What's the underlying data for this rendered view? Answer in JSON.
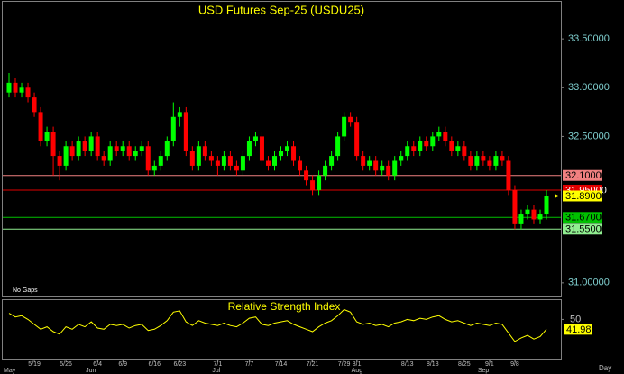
{
  "chart_data": {
    "type": "candlestick",
    "title": "USD Futures Sep-25 (USDU25)",
    "note": "No Gaps",
    "period": "Day",
    "up_color": "#00ff00",
    "down_color": "#ff0000",
    "categories": [
      null,
      null,
      null,
      null,
      "5/19",
      null,
      null,
      null,
      null,
      "5/26",
      null,
      null,
      null,
      null,
      "6/4",
      null,
      null,
      null,
      "6/9",
      null,
      null,
      null,
      null,
      "6/16",
      null,
      null,
      null,
      "6/23",
      null,
      null,
      null,
      null,
      null,
      "7/1",
      null,
      null,
      null,
      null,
      "7/7",
      null,
      null,
      null,
      null,
      "7/14",
      null,
      null,
      null,
      null,
      "7/21",
      null,
      null,
      null,
      null,
      "7/29",
      null,
      "8/1",
      null,
      null,
      null,
      null,
      null,
      null,
      null,
      "8/13",
      null,
      null,
      null,
      "8/18",
      null,
      null,
      null,
      null,
      "8/25",
      null,
      null,
      null,
      "9/1",
      null,
      null,
      null,
      "9/8",
      null,
      null,
      null,
      null,
      null
    ],
    "months": [
      "May",
      null,
      null,
      null,
      null,
      null,
      null,
      null,
      null,
      null,
      null,
      null,
      null,
      "Jun",
      null,
      null,
      null,
      null,
      null,
      null,
      null,
      null,
      null,
      null,
      null,
      null,
      null,
      null,
      null,
      null,
      null,
      null,
      null,
      "Jul",
      null,
      null,
      null,
      null,
      null,
      null,
      null,
      null,
      null,
      null,
      null,
      null,
      null,
      null,
      null,
      null,
      null,
      null,
      null,
      null,
      null,
      "Aug",
      null,
      null,
      null,
      null,
      null,
      null,
      null,
      null,
      null,
      null,
      null,
      null,
      null,
      null,
      null,
      null,
      null,
      null,
      null,
      "Sep",
      null,
      null,
      null,
      null,
      null,
      null,
      null,
      null,
      null,
      null
    ],
    "open": [
      32.95,
      33.05,
      32.95,
      33.0,
      32.9,
      32.75,
      32.45,
      32.55,
      32.3,
      32.2,
      32.4,
      32.3,
      32.45,
      32.35,
      32.5,
      32.3,
      32.25,
      32.4,
      32.35,
      32.4,
      32.3,
      32.35,
      32.4,
      32.15,
      32.2,
      32.3,
      32.45,
      32.7,
      32.75,
      32.35,
      32.2,
      32.4,
      32.3,
      32.25,
      32.2,
      32.3,
      32.2,
      32.15,
      32.3,
      32.45,
      32.5,
      32.25,
      32.2,
      32.3,
      32.35,
      32.4,
      32.25,
      32.15,
      32.05,
      31.95,
      32.1,
      32.2,
      32.3,
      32.5,
      32.7,
      32.65,
      32.3,
      32.2,
      32.25,
      32.15,
      32.2,
      32.1,
      32.25,
      32.3,
      32.4,
      32.35,
      32.45,
      32.4,
      32.5,
      32.55,
      32.45,
      32.35,
      32.4,
      32.3,
      32.2,
      32.3,
      32.25,
      32.2,
      32.3,
      32.25,
      31.95,
      31.6,
      31.7,
      31.75,
      31.65,
      31.7
    ],
    "high": [
      33.15,
      33.1,
      33.05,
      33.05,
      32.95,
      32.8,
      32.6,
      32.6,
      32.35,
      32.45,
      32.45,
      32.5,
      32.5,
      32.55,
      32.55,
      32.35,
      32.45,
      32.45,
      32.45,
      32.45,
      32.4,
      32.45,
      32.45,
      32.25,
      32.35,
      32.5,
      32.85,
      32.8,
      32.8,
      32.4,
      32.45,
      32.45,
      32.35,
      32.3,
      32.35,
      32.35,
      32.25,
      32.35,
      32.5,
      32.55,
      32.55,
      32.3,
      32.35,
      32.4,
      32.45,
      32.45,
      32.3,
      32.2,
      32.1,
      32.15,
      32.25,
      32.35,
      32.55,
      32.75,
      32.75,
      32.7,
      32.35,
      32.3,
      32.3,
      32.25,
      32.25,
      32.3,
      32.35,
      32.45,
      32.45,
      32.5,
      32.5,
      32.55,
      32.6,
      32.6,
      32.5,
      32.45,
      32.45,
      32.35,
      32.35,
      32.35,
      32.3,
      32.35,
      32.35,
      32.3,
      32.0,
      31.75,
      31.8,
      31.8,
      31.75,
      31.95
    ],
    "low": [
      32.9,
      32.9,
      32.9,
      32.85,
      32.7,
      32.4,
      32.4,
      32.1,
      32.05,
      32.15,
      32.25,
      32.25,
      32.3,
      32.3,
      32.25,
      32.2,
      32.2,
      32.3,
      32.3,
      32.25,
      32.25,
      32.3,
      32.1,
      32.1,
      32.15,
      32.25,
      32.4,
      32.6,
      32.3,
      32.15,
      32.15,
      32.25,
      32.2,
      32.1,
      32.15,
      32.15,
      32.1,
      32.1,
      32.25,
      32.4,
      32.2,
      32.15,
      32.15,
      32.25,
      32.3,
      32.2,
      32.1,
      32.0,
      31.9,
      31.9,
      32.05,
      32.15,
      32.25,
      32.45,
      32.6,
      32.25,
      32.15,
      32.15,
      32.1,
      32.1,
      32.05,
      32.05,
      32.2,
      32.25,
      32.3,
      32.3,
      32.35,
      32.35,
      32.45,
      32.4,
      32.3,
      32.3,
      32.25,
      32.15,
      32.15,
      32.2,
      32.15,
      32.15,
      32.2,
      31.9,
      31.55,
      31.55,
      31.65,
      31.6,
      31.6,
      31.65
    ],
    "close": [
      33.05,
      32.95,
      33.0,
      32.9,
      32.75,
      32.45,
      32.55,
      32.3,
      32.2,
      32.4,
      32.3,
      32.45,
      32.35,
      32.5,
      32.3,
      32.25,
      32.4,
      32.35,
      32.4,
      32.3,
      32.35,
      32.4,
      32.15,
      32.2,
      32.3,
      32.45,
      32.7,
      32.75,
      32.35,
      32.2,
      32.4,
      32.3,
      32.25,
      32.2,
      32.3,
      32.2,
      32.15,
      32.3,
      32.45,
      32.5,
      32.25,
      32.2,
      32.3,
      32.35,
      32.4,
      32.25,
      32.15,
      32.05,
      31.95,
      32.1,
      32.2,
      32.3,
      32.5,
      32.7,
      32.65,
      32.3,
      32.2,
      32.25,
      32.15,
      32.2,
      32.1,
      32.25,
      32.3,
      32.4,
      32.35,
      32.45,
      32.4,
      32.5,
      32.55,
      32.45,
      32.35,
      32.4,
      32.3,
      32.2,
      32.3,
      32.25,
      32.2,
      32.3,
      32.25,
      31.95,
      31.6,
      31.7,
      31.75,
      31.65,
      31.7,
      31.89
    ],
    "ylim": [
      30.86,
      33.88
    ],
    "yticks": [
      {
        "value": 33.5,
        "label": "33.50000"
      },
      {
        "value": 33.0,
        "label": "33.00000"
      },
      {
        "value": 32.5,
        "label": "32.50000"
      },
      {
        "value": 31.0,
        "label": "31.00000"
      }
    ],
    "levels": [
      {
        "value": 32.1,
        "label": "32.10000",
        "color": "#f08080",
        "text_color": "#000000",
        "line": true
      },
      {
        "value": 31.95,
        "label": "31.95000",
        "color": "#e00000",
        "text_color": "#ffffff",
        "line": true
      },
      {
        "value": 31.89,
        "label": "31.89000",
        "color": "#ffff00",
        "text_color": "#000000",
        "line": false
      },
      {
        "value": 31.67,
        "label": "31.67000",
        "color": "#00c000",
        "text_color": "#000000",
        "line": true
      },
      {
        "value": 31.55,
        "label": "31.55000",
        "color": "#90ee90",
        "text_color": "#000000",
        "line": true
      }
    ],
    "rsi": {
      "title": "Relative Strength Index",
      "color": "#ffff00",
      "ylim": [
        18,
        65
      ],
      "yticks": [
        50
      ],
      "values": [
        55,
        52,
        53,
        50,
        46,
        42,
        44,
        40,
        38,
        44,
        42,
        46,
        44,
        48,
        43,
        42,
        46,
        45,
        46,
        43,
        45,
        46,
        41,
        42,
        45,
        49,
        56,
        57,
        48,
        45,
        49,
        47,
        46,
        45,
        47,
        45,
        44,
        47,
        51,
        52,
        46,
        45,
        47,
        48,
        49,
        46,
        44,
        42,
        40,
        44,
        47,
        49,
        53,
        58,
        56,
        48,
        46,
        47,
        45,
        46,
        44,
        47,
        48,
        50,
        49,
        51,
        50,
        52,
        53,
        50,
        48,
        49,
        47,
        45,
        47,
        46,
        45,
        47,
        46,
        39,
        32,
        35,
        37,
        34,
        36,
        41.98
      ]
    }
  }
}
